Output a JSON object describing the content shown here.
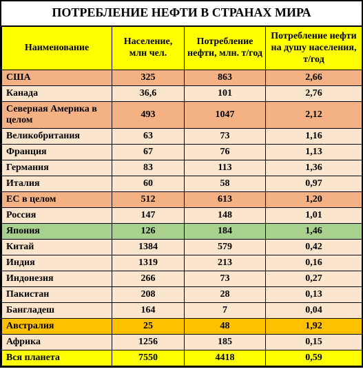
{
  "title": "ПОТРЕБЛЕНИЕ НЕФТИ В СТРАНАХ МИРА",
  "colors": {
    "header_bg": "#ffff00",
    "orange": "#f4b183",
    "peach": "#fce5cd",
    "green": "#a9d18e",
    "gold": "#ffc000",
    "yellow": "#ffff00"
  },
  "columns": [
    "Наименование",
    "Население, млн чел.",
    "Потребление нефти, млн. т/год",
    "Потребление нефти на душу населения, т/год"
  ],
  "rows": [
    {
      "name": "США",
      "pop": "325",
      "oil": "863",
      "percap": "2,66",
      "color": "orange"
    },
    {
      "name": "Канада",
      "pop": "36,6",
      "oil": "101",
      "percap": "2,76",
      "color": "peach"
    },
    {
      "name": "Северная Америка в целом",
      "pop": "493",
      "oil": "1047",
      "percap": "2,12",
      "color": "orange"
    },
    {
      "name": "Великобритания",
      "pop": "63",
      "oil": "73",
      "percap": "1,16",
      "color": "peach"
    },
    {
      "name": "Франция",
      "pop": "67",
      "oil": "76",
      "percap": "1,13",
      "color": "peach"
    },
    {
      "name": "Германия",
      "pop": "83",
      "oil": "113",
      "percap": "1,36",
      "color": "peach"
    },
    {
      "name": "Италия",
      "pop": "60",
      "oil": "58",
      "percap": "0,97",
      "color": "peach"
    },
    {
      "name": "ЕС в целом",
      "pop": "512",
      "oil": "613",
      "percap": "1,20",
      "color": "orange"
    },
    {
      "name": "Россия",
      "pop": "147",
      "oil": "148",
      "percap": "1,01",
      "color": "peach"
    },
    {
      "name": "Япония",
      "pop": "126",
      "oil": "184",
      "percap": "1,46",
      "color": "green"
    },
    {
      "name": "Китай",
      "pop": "1384",
      "oil": "579",
      "percap": "0,42",
      "color": "peach"
    },
    {
      "name": "Индия",
      "pop": "1319",
      "oil": "213",
      "percap": "0,16",
      "color": "peach"
    },
    {
      "name": "Индонезия",
      "pop": "266",
      "oil": "73",
      "percap": "0,27",
      "color": "peach"
    },
    {
      "name": "Пакистан",
      "pop": "208",
      "oil": "28",
      "percap": "0,13",
      "color": "peach"
    },
    {
      "name": "Бангладеш",
      "pop": "164",
      "oil": "7",
      "percap": "0,04",
      "color": "peach"
    },
    {
      "name": "Австралия",
      "pop": "25",
      "oil": "48",
      "percap": "1,92",
      "color": "gold"
    },
    {
      "name": "Африка",
      "pop": "1256",
      "oil": "185",
      "percap": "0,15",
      "color": "peach"
    },
    {
      "name": "Вся планета",
      "pop": "7550",
      "oil": "4418",
      "percap": "0,59",
      "color": "yellow"
    }
  ]
}
